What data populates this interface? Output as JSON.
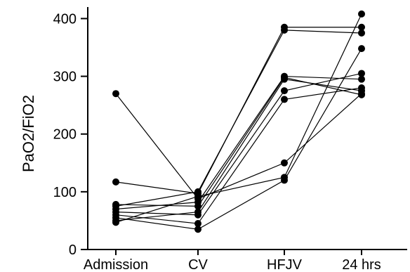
{
  "chart_data": {
    "type": "line",
    "title": "",
    "xlabel": "",
    "ylabel": "PaO2/FiO2",
    "categories": [
      "Admission",
      "CV",
      "HFJV",
      "24 hrs"
    ],
    "ylim": [
      0,
      420
    ],
    "yticks": [
      "0",
      "100",
      "200",
      "300",
      "400"
    ],
    "grid": false,
    "series": [
      {
        "values": [
          270,
          88,
          150,
          270
        ]
      },
      {
        "values": [
          117,
          97,
          385,
          385
        ]
      },
      {
        "values": [
          75,
          100,
          380,
          375
        ]
      },
      {
        "values": [
          70,
          82,
          300,
          295
        ]
      },
      {
        "values": [
          65,
          60,
          275,
          305
        ]
      },
      {
        "values": [
          60,
          45,
          260,
          280
        ]
      },
      {
        "values": [
          55,
          35,
          120,
          348
        ]
      },
      {
        "values": [
          50,
          65,
          295,
          275
        ]
      },
      {
        "values": [
          47,
          92,
          125,
          408
        ]
      },
      {
        "values": [
          78,
          75,
          298,
          268
        ]
      }
    ]
  }
}
